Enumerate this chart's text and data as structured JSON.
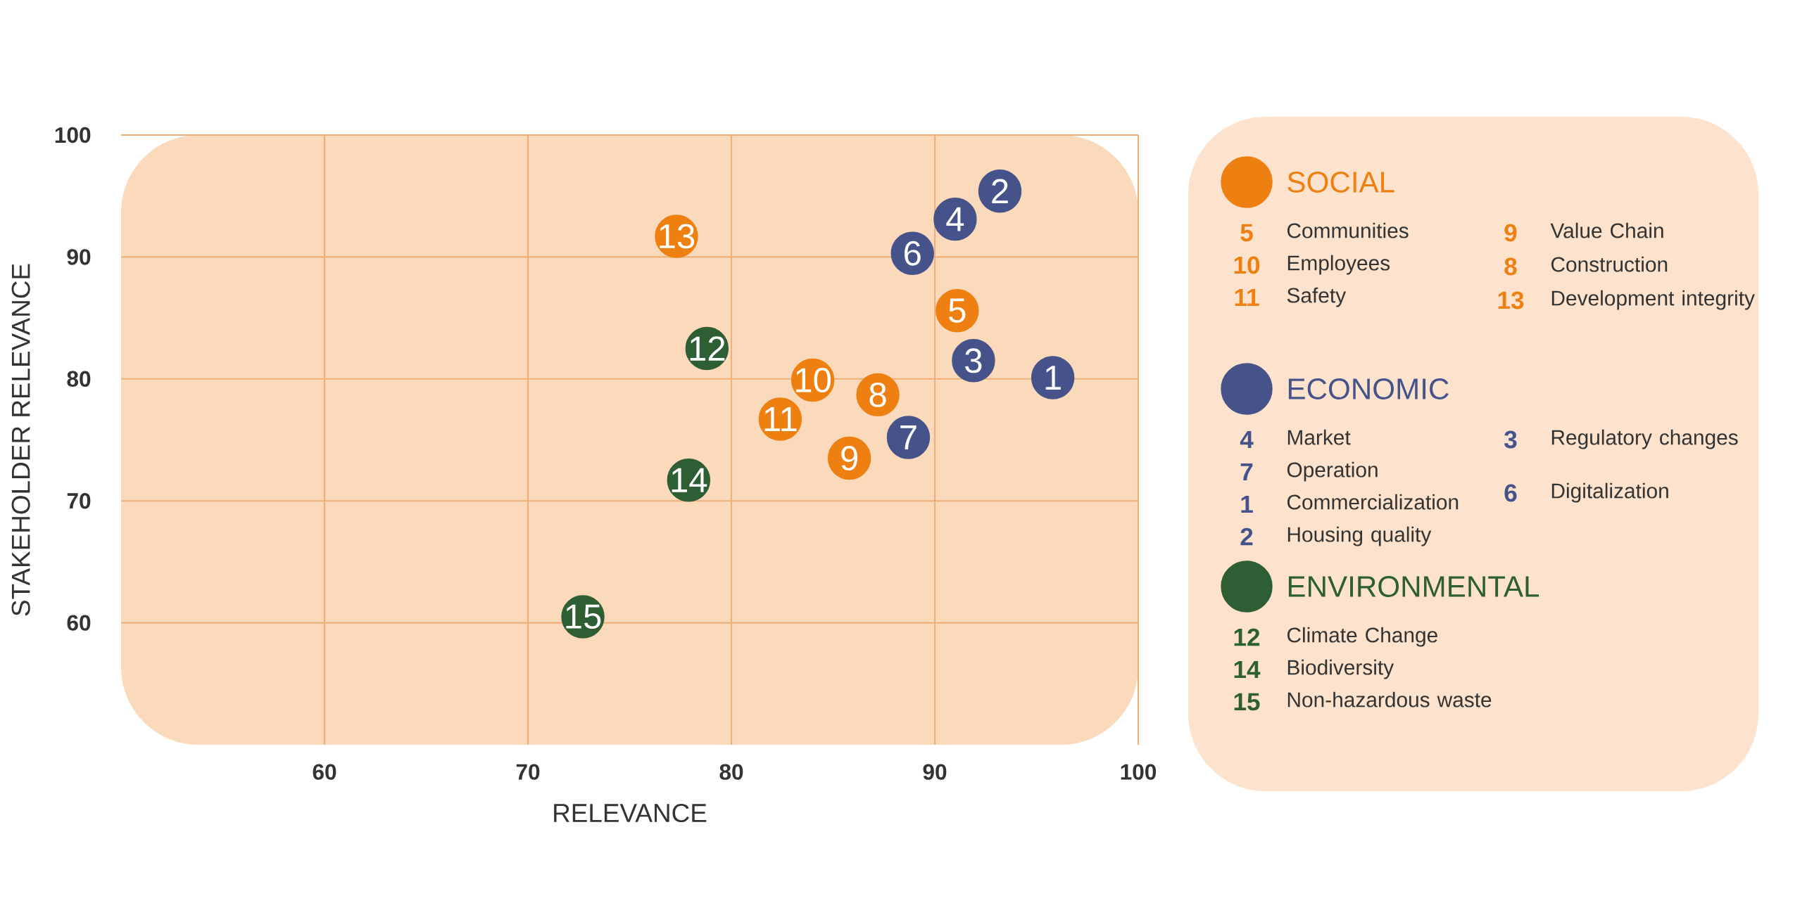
{
  "chart_data": {
    "type": "scatter",
    "xlabel": "RELEVANCE",
    "ylabel": "STAKEHOLDER RELEVANCE",
    "xlim": [
      50,
      100
    ],
    "ylim": [
      50,
      100
    ],
    "xticks": [
      60,
      70,
      80,
      90,
      100
    ],
    "yticks": [
      60,
      70,
      80,
      90,
      100
    ],
    "grid": true,
    "legend": "right",
    "marker": "circle",
    "series": [
      {
        "name": "SOCIAL",
        "color": "#ee8012",
        "x": [
          91.1,
          84.0,
          82.4,
          85.8,
          87.2,
          77.3
        ],
        "values": [
          85.6,
          79.9,
          76.7,
          73.5,
          78.7,
          91.7
        ]
      },
      {
        "name": "ECONOMIC",
        "color": "#46538a",
        "x": [
          91.0,
          88.7,
          95.8,
          93.2,
          91.9,
          88.9
        ],
        "values": [
          93.1,
          75.2,
          80.1,
          95.4,
          81.5,
          90.3
        ]
      },
      {
        "name": "ENVIRONMENTAL",
        "color": "#2e5e33",
        "x": [
          78.8,
          77.9,
          72.7
        ],
        "values": [
          82.5,
          71.7,
          60.5
        ]
      }
    ],
    "annotations": [
      {
        "text": "5",
        "x": 91.1,
        "y": 85.6
      },
      {
        "text": "10",
        "x": 84.0,
        "y": 79.9
      },
      {
        "text": "11",
        "x": 82.4,
        "y": 76.7
      },
      {
        "text": "9",
        "x": 85.8,
        "y": 73.5
      },
      {
        "text": "8",
        "x": 87.2,
        "y": 78.7
      },
      {
        "text": "13",
        "x": 77.3,
        "y": 91.7
      },
      {
        "text": "4",
        "x": 91.0,
        "y": 93.1
      },
      {
        "text": "7",
        "x": 88.7,
        "y": 75.2
      },
      {
        "text": "1",
        "x": 95.8,
        "y": 80.1
      },
      {
        "text": "2",
        "x": 93.2,
        "y": 95.4
      },
      {
        "text": "3",
        "x": 91.9,
        "y": 81.5
      },
      {
        "text": "6",
        "x": 88.9,
        "y": 90.3
      },
      {
        "text": "12",
        "x": 78.8,
        "y": 82.5
      },
      {
        "text": "14",
        "x": 77.9,
        "y": 71.7
      },
      {
        "text": "15",
        "x": 72.7,
        "y": 60.5
      },
      "5",
      "Communities",
      "10",
      "Employees",
      "11",
      "Safety",
      "9",
      "Value Chain",
      "8",
      "Construction",
      "13",
      "Development integrity",
      "4",
      "Market",
      "7",
      "Operation",
      "1",
      "Commercialization",
      "2",
      "Housing quality",
      "3",
      "Regulatory changes",
      "6",
      "Digitalization",
      "12",
      "Climate Change",
      "14",
      "Biodiversity",
      "15",
      "Non-hazardous waste"
    ]
  }
}
